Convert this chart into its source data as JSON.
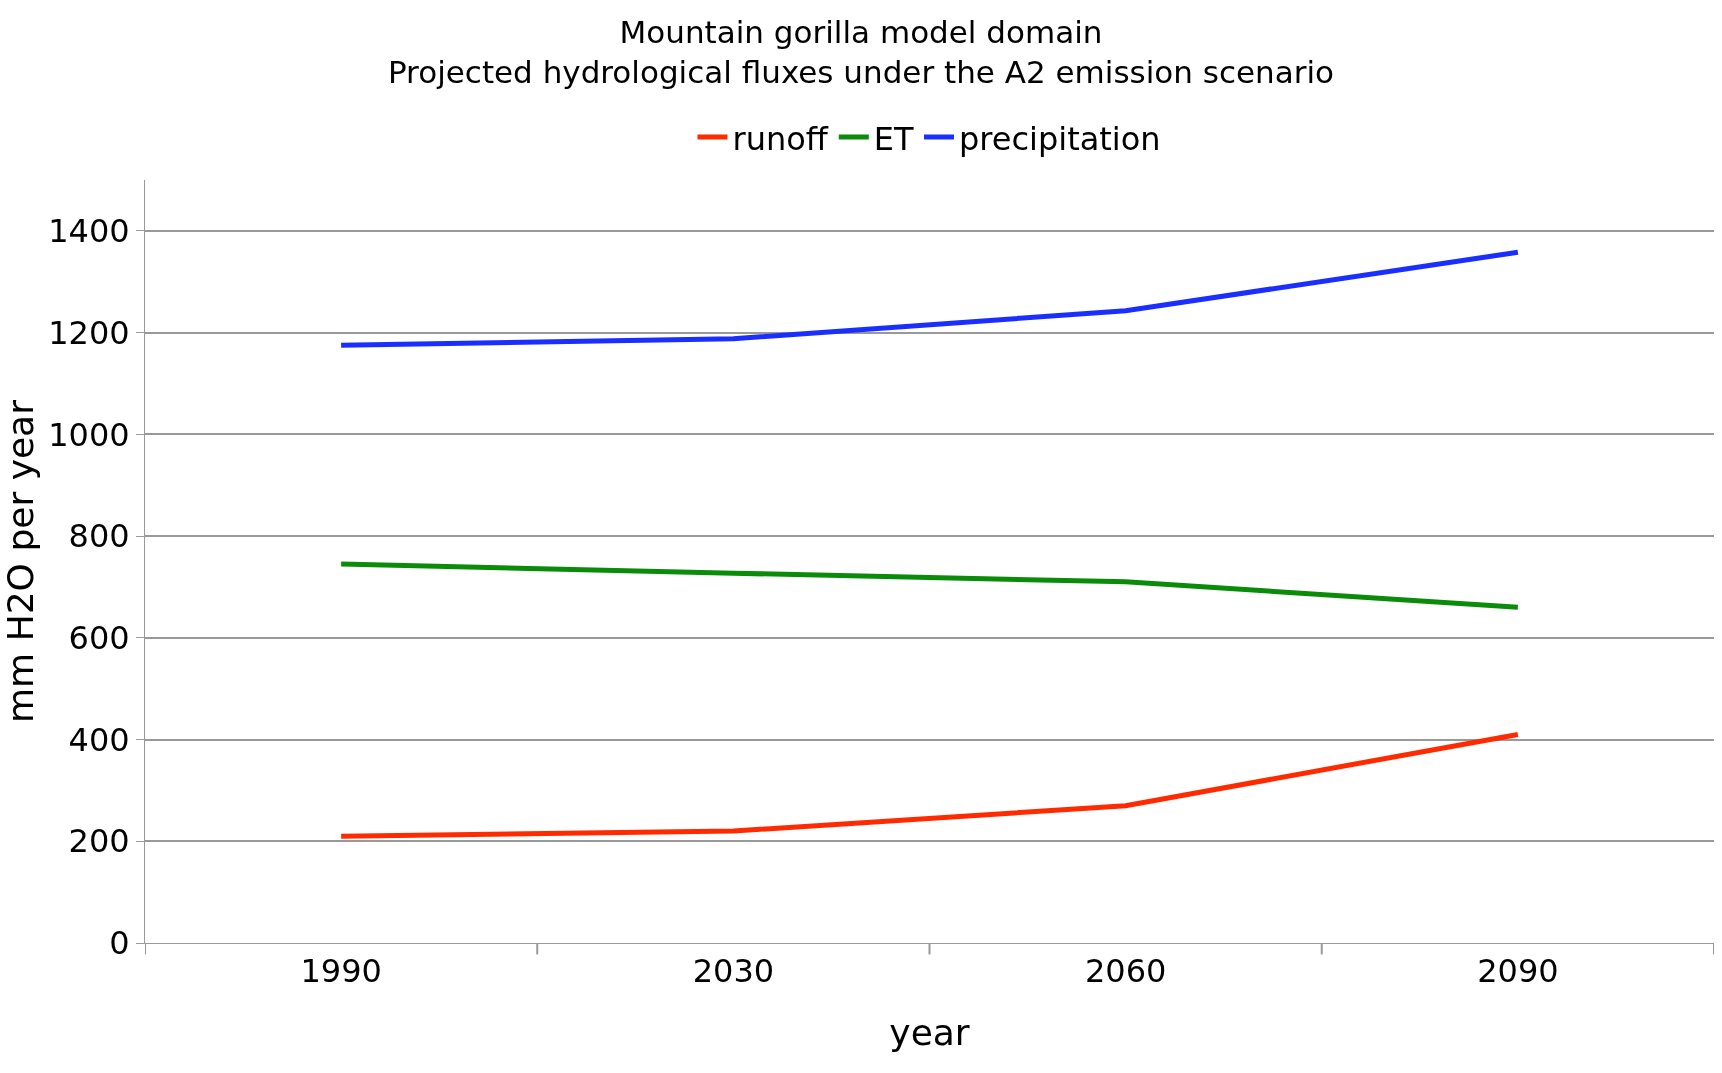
{
  "chart_data": {
    "type": "line",
    "title": "Mountain gorilla model domain\nProjected hydrological fluxes under the A2 emission scenario",
    "xlabel": "year",
    "ylabel": "mm H2O per year",
    "categories": [
      "1990",
      "2030",
      "2060",
      "2090"
    ],
    "series": [
      {
        "name": "runoff",
        "color": "#ff2a00",
        "values": [
          210,
          220,
          270,
          410
        ]
      },
      {
        "name": "ET",
        "color": "#0a8c0a",
        "values": [
          745,
          727,
          710,
          660
        ]
      },
      {
        "name": "precipitation",
        "color": "#1a2eff",
        "values": [
          1175,
          1188,
          1243,
          1358
        ]
      }
    ],
    "ylim": [
      0,
      1500
    ],
    "yticks": [
      0,
      200,
      400,
      600,
      800,
      1000,
      1200,
      1400
    ],
    "grid": "y",
    "legend": "top",
    "marker": "none",
    "line_style": "solid"
  }
}
